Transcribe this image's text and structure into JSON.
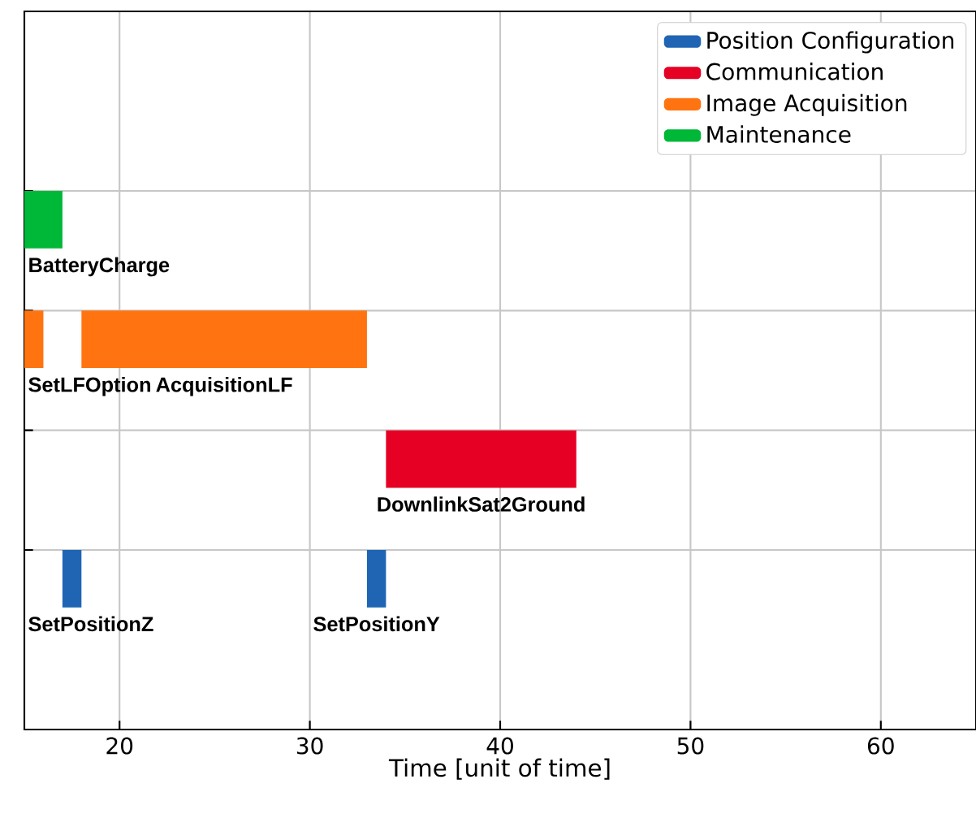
{
  "chart_data": {
    "type": "bar",
    "orientation": "horizontal",
    "xlabel": "Time [unit of time]",
    "categories": [
      null,
      null,
      null,
      null,
      null,
      null
    ],
    "series": [
      {
        "name": "Position Configuration",
        "color": "#1f65b4",
        "values": [
          null,
          null,
          null,
          null,
          1,
          null
        ],
        "base": [
          null,
          null,
          null,
          null,
          17,
          null
        ],
        "value_labels": [
          null,
          null,
          null,
          null,
          "SetPositionZ",
          null
        ]
      },
      {
        "color": "#1f65b4",
        "values": [
          null,
          null,
          null,
          null,
          1,
          null
        ],
        "base": [
          null,
          null,
          null,
          null,
          33,
          null
        ],
        "value_labels": [
          null,
          null,
          null,
          null,
          "SetPositionY",
          null
        ]
      },
      {
        "name": "Communication",
        "color": "#e60024",
        "values": [
          null,
          null,
          null,
          10,
          null,
          null
        ],
        "base": [
          null,
          null,
          null,
          34,
          null,
          null
        ],
        "value_labels": [
          null,
          null,
          null,
          "DownlinkSat2Ground",
          null,
          null
        ]
      },
      {
        "name": "Image Acquisition",
        "color": "#ff7410",
        "values": [
          null,
          null,
          1,
          null,
          null,
          null
        ],
        "base": [
          null,
          null,
          15,
          null,
          null,
          null
        ],
        "value_labels": [
          null,
          null,
          "SetLFOption",
          null,
          null,
          null
        ]
      },
      {
        "color": "#ff7410",
        "values": [
          null,
          null,
          15,
          null,
          null,
          null
        ],
        "base": [
          null,
          null,
          18,
          null,
          null,
          null
        ],
        "value_labels": [
          null,
          null,
          "AcquisitionLF",
          null,
          null,
          null
        ]
      },
      {
        "name": "Maintenance",
        "color": "#00b838",
        "values": [
          null,
          2,
          null,
          null,
          null,
          null
        ],
        "base": [
          null,
          15,
          null,
          null,
          null,
          null
        ],
        "value_labels": [
          null,
          "BatteryCharge",
          null,
          null,
          null,
          null
        ]
      }
    ],
    "xlim": [
      15,
      65
    ],
    "xticks": [
      20,
      30,
      40,
      50,
      60
    ],
    "grid": true,
    "legend": "top right",
    "tick_labels": "x"
  }
}
